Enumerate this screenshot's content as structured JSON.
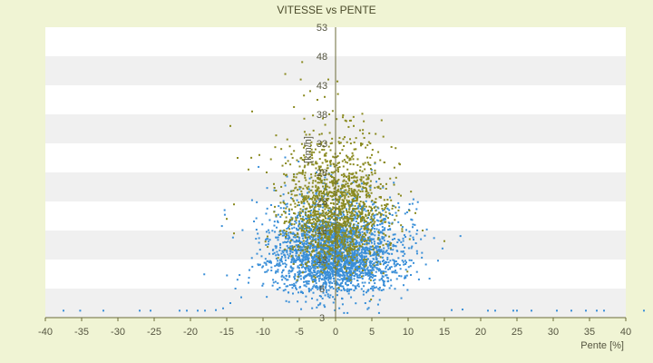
{
  "chart_data": {
    "type": "scatter",
    "title": "VITESSE vs PENTE",
    "xlabel": "Pente [%]",
    "ylabel": "[km/h]",
    "xlim": [
      -40,
      40
    ],
    "ylim": [
      3,
      53
    ],
    "x_ticks": [
      "-40",
      "-35",
      "-30",
      "-25",
      "-20",
      "-15",
      "-10",
      "-5",
      "0",
      "5",
      "10",
      "15",
      "20",
      "25",
      "30",
      "35",
      "40"
    ],
    "y_ticks": [
      "3",
      "8",
      "13",
      "18",
      "23",
      "28",
      "33",
      "38",
      "43",
      "48",
      "53"
    ],
    "grid": "alternating horizontal bands",
    "colors": {
      "series_blue": "#3a8fd8",
      "series_olive": "#8a8a20",
      "band_light": "#ffffff",
      "band_dark": "#f0f0f0",
      "axis": "#6b6b3a"
    },
    "series": [
      {
        "color": "#3a8fd8",
        "cluster": {
          "center_x": 0,
          "center_y": 13,
          "spread_x": 4.5,
          "spread_y": 5,
          "count": 2600
        },
        "values": [
          [
            -37.5,
            4.2
          ],
          [
            -35.2,
            4.2
          ],
          [
            -32.0,
            4.2
          ],
          [
            -27.0,
            4.2
          ],
          [
            -25.5,
            4.2
          ],
          [
            -21.5,
            4.2
          ],
          [
            -20.5,
            4.2
          ],
          [
            -19.0,
            4.2
          ],
          [
            -18.0,
            4.2
          ],
          [
            -16.5,
            4.3
          ],
          [
            -15.5,
            4.6
          ],
          [
            -14.5,
            5.5
          ],
          [
            -13.8,
            8.0
          ],
          [
            -13.0,
            6.5
          ],
          [
            -12.0,
            9.0
          ],
          [
            16.0,
            4.3
          ],
          [
            17.5,
            4.4
          ],
          [
            21.0,
            4.2
          ],
          [
            22.0,
            4.2
          ],
          [
            24.5,
            4.2
          ],
          [
            25.0,
            4.2
          ],
          [
            27.0,
            4.2
          ],
          [
            30.5,
            4.2
          ],
          [
            32.5,
            4.2
          ],
          [
            34.5,
            4.2
          ],
          [
            36.0,
            4.2
          ],
          [
            37.0,
            4.2
          ],
          [
            42.5,
            4.2
          ]
        ]
      },
      {
        "color": "#8a8a20",
        "cluster": {
          "center_x": 0,
          "center_y": 20,
          "spread_x": 3.5,
          "spread_y": 7,
          "count": 1500
        },
        "values": [
          [
            -4.6,
            47.0
          ],
          [
            -4.8,
            44.0
          ],
          [
            -3.5,
            42.0
          ],
          [
            -2.5,
            40.5
          ],
          [
            -1.5,
            41.0
          ],
          [
            -1.0,
            44.0
          ],
          [
            -14.5,
            36.0
          ],
          [
            -11.5,
            38.5
          ],
          [
            -10.5,
            31.0
          ],
          [
            -13.5,
            30.5
          ],
          [
            -12.0,
            28.5
          ],
          [
            -9.5,
            28.0
          ],
          [
            -8.5,
            26.0
          ],
          [
            -14.0,
            22.5
          ],
          [
            -15.0,
            20.0
          ],
          [
            -14.0,
            17.5
          ],
          [
            3.5,
            33.0
          ],
          [
            5.0,
            31.0
          ],
          [
            2.5,
            36.0
          ],
          [
            1.0,
            37.5
          ],
          [
            7.0,
            26.0
          ],
          [
            9.0,
            24.0
          ],
          [
            11.0,
            21.0
          ],
          [
            12.0,
            18.0
          ]
        ]
      }
    ]
  }
}
